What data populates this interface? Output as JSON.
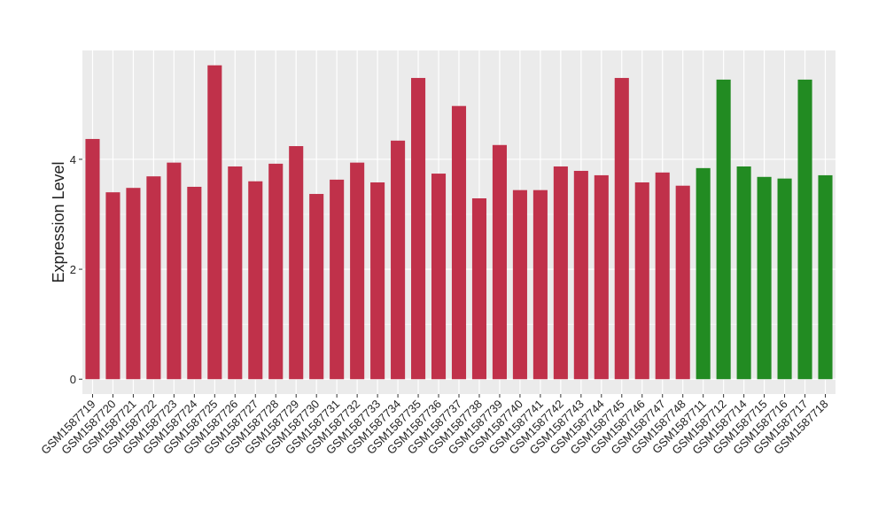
{
  "chart_data": {
    "type": "bar",
    "y_label": "Expression Level",
    "categories": [
      "GSM1587719",
      "GSM1587720",
      "GSM1587721",
      "GSM1587722",
      "GSM1587723",
      "GSM1587724",
      "GSM1587725",
      "GSM1587726",
      "GSM1587727",
      "GSM1587728",
      "GSM1587729",
      "GSM1587730",
      "GSM1587731",
      "GSM1587732",
      "GSM1587733",
      "GSM1587734",
      "GSM1587735",
      "GSM1587736",
      "GSM1587737",
      "GSM1587738",
      "GSM1587739",
      "GSM1587740",
      "GSM1587741",
      "GSM1587742",
      "GSM1587743",
      "GSM1587744",
      "GSM1587745",
      "GSM1587746",
      "GSM1587747",
      "GSM1587748",
      "GSM1587711",
      "GSM1587712",
      "GSM1587714",
      "GSM1587715",
      "GSM1587716",
      "GSM1587717",
      "GSM1587718"
    ],
    "values": [
      4.37,
      3.4,
      3.48,
      3.69,
      3.94,
      3.5,
      5.71,
      3.87,
      3.6,
      3.92,
      4.24,
      3.37,
      3.63,
      3.94,
      3.58,
      4.34,
      5.48,
      3.74,
      4.97,
      3.29,
      4.26,
      3.44,
      3.44,
      3.87,
      3.79,
      3.71,
      5.48,
      3.58,
      3.76,
      3.52,
      3.84,
      5.45,
      3.87,
      3.68,
      3.65,
      5.45,
      3.71
    ],
    "colors": [
      "#c0314a",
      "#c0314a",
      "#c0314a",
      "#c0314a",
      "#c0314a",
      "#c0314a",
      "#c0314a",
      "#c0314a",
      "#c0314a",
      "#c0314a",
      "#c0314a",
      "#c0314a",
      "#c0314a",
      "#c0314a",
      "#c0314a",
      "#c0314a",
      "#c0314a",
      "#c0314a",
      "#c0314a",
      "#c0314a",
      "#c0314a",
      "#c0314a",
      "#c0314a",
      "#c0314a",
      "#c0314a",
      "#c0314a",
      "#c0314a",
      "#c0314a",
      "#c0314a",
      "#c0314a",
      "#228b22",
      "#228b22",
      "#228b22",
      "#228b22",
      "#228b22",
      "#228b22",
      "#228b22"
    ],
    "ylim": [
      -0.27,
      5.98
    ],
    "yticks": [
      0,
      2,
      4
    ],
    "grid": true
  }
}
